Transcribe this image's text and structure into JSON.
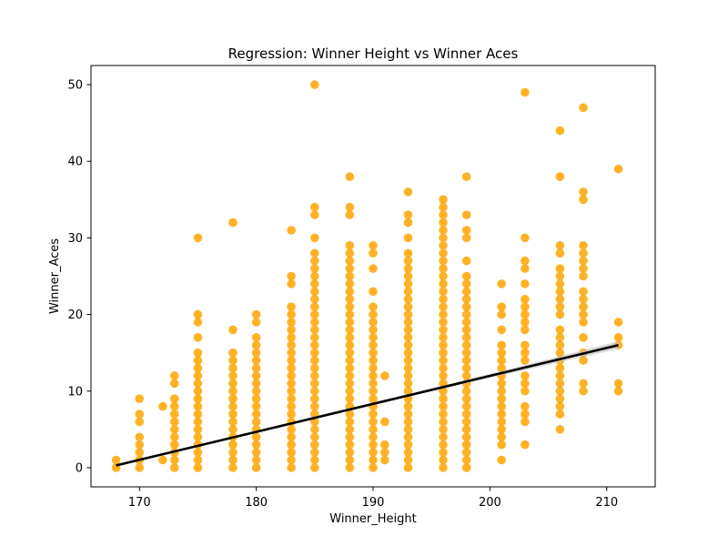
{
  "chart_data": {
    "type": "scatter",
    "title": "Regression: Winner Height vs Winner Aces",
    "xlabel": "Winner_Height",
    "ylabel": "Winner_Aces",
    "xlim": [
      165.85,
      214.15
    ],
    "ylim": [
      -2.5,
      52.5
    ],
    "xticks": [
      170,
      180,
      190,
      200,
      210
    ],
    "yticks": [
      0,
      10,
      20,
      30,
      40,
      50
    ],
    "grid": false,
    "point_color": "#ffa500",
    "line_color": "#000000",
    "band_color": "#bfbfbf",
    "columns": [
      {
        "x": 168,
        "y": [
          0,
          1
        ]
      },
      {
        "x": 170,
        "y": [
          0,
          1,
          2,
          3,
          4,
          6,
          7,
          9
        ]
      },
      {
        "x": 172,
        "y": [
          1,
          8
        ]
      },
      {
        "x": 173,
        "y": [
          0,
          1,
          2,
          3,
          4,
          5,
          6,
          7,
          8,
          9,
          11,
          12
        ]
      },
      {
        "x": 175,
        "y": [
          0,
          1,
          2,
          3,
          4,
          5,
          6,
          7,
          8,
          9,
          10,
          11,
          12,
          13,
          14,
          15,
          17,
          19,
          20,
          30
        ]
      },
      {
        "x": 178,
        "y": [
          0,
          1,
          2,
          3,
          4,
          5,
          6,
          7,
          8,
          9,
          10,
          11,
          12,
          13,
          14,
          15,
          18,
          32
        ]
      },
      {
        "x": 180,
        "y": [
          0,
          1,
          2,
          3,
          4,
          5,
          6,
          7,
          8,
          9,
          10,
          11,
          12,
          13,
          14,
          15,
          16,
          17,
          19,
          20
        ]
      },
      {
        "x": 183,
        "y": [
          0,
          1,
          2,
          3,
          4,
          5,
          6,
          7,
          8,
          9,
          10,
          11,
          12,
          13,
          14,
          15,
          16,
          17,
          18,
          19,
          20,
          21,
          24,
          25,
          31
        ]
      },
      {
        "x": 185,
        "y": [
          0,
          1,
          2,
          3,
          4,
          5,
          6,
          7,
          8,
          9,
          10,
          11,
          12,
          13,
          14,
          15,
          16,
          17,
          18,
          19,
          20,
          21,
          22,
          23,
          24,
          25,
          26,
          27,
          28,
          30,
          33,
          34,
          50
        ]
      },
      {
        "x": 188,
        "y": [
          0,
          1,
          2,
          3,
          4,
          5,
          6,
          7,
          8,
          9,
          10,
          11,
          12,
          13,
          14,
          15,
          16,
          17,
          18,
          19,
          20,
          21,
          22,
          23,
          24,
          25,
          26,
          27,
          28,
          29,
          33,
          34,
          38
        ]
      },
      {
        "x": 190,
        "y": [
          0,
          1,
          2,
          3,
          4,
          5,
          6,
          7,
          8,
          9,
          10,
          11,
          12,
          13,
          14,
          15,
          16,
          17,
          18,
          19,
          20,
          21,
          23,
          26,
          28,
          29
        ]
      },
      {
        "x": 191,
        "y": [
          1,
          2,
          3,
          6,
          12
        ]
      },
      {
        "x": 193,
        "y": [
          0,
          1,
          2,
          3,
          4,
          5,
          6,
          7,
          8,
          9,
          10,
          11,
          12,
          13,
          14,
          15,
          16,
          17,
          18,
          19,
          20,
          21,
          22,
          23,
          24,
          25,
          26,
          27,
          28,
          30,
          32,
          33,
          36
        ]
      },
      {
        "x": 196,
        "y": [
          0,
          1,
          2,
          3,
          4,
          5,
          6,
          7,
          8,
          9,
          10,
          11,
          12,
          13,
          14,
          15,
          16,
          17,
          18,
          19,
          20,
          21,
          22,
          23,
          24,
          25,
          26,
          27,
          28,
          29,
          30,
          31,
          32,
          33,
          34,
          35
        ]
      },
      {
        "x": 198,
        "y": [
          0,
          1,
          2,
          3,
          4,
          5,
          6,
          7,
          8,
          9,
          10,
          11,
          12,
          13,
          14,
          15,
          16,
          17,
          18,
          19,
          20,
          21,
          22,
          23,
          24,
          25,
          27,
          30,
          31,
          33,
          38
        ]
      },
      {
        "x": 201,
        "y": [
          1,
          3,
          4,
          5,
          6,
          7,
          8,
          9,
          10,
          11,
          12,
          13,
          14,
          15,
          16,
          18,
          20,
          21,
          24
        ]
      },
      {
        "x": 203,
        "y": [
          3,
          6,
          7,
          8,
          10,
          11,
          12,
          14,
          15,
          16,
          18,
          19,
          20,
          21,
          22,
          24,
          26,
          27,
          30,
          49
        ]
      },
      {
        "x": 206,
        "y": [
          5,
          7,
          8,
          9,
          10,
          11,
          12,
          13,
          14,
          15,
          16,
          17,
          18,
          20,
          21,
          22,
          23,
          24,
          25,
          26,
          28,
          29,
          38,
          44
        ]
      },
      {
        "x": 208,
        "y": [
          10,
          11,
          14,
          15,
          17,
          19,
          20,
          21,
          22,
          23,
          25,
          26,
          27,
          28,
          29,
          35,
          36,
          47
        ]
      },
      {
        "x": 211,
        "y": [
          10,
          11,
          16,
          17,
          19,
          39
        ]
      }
    ],
    "regression": {
      "x": [
        168,
        211
      ],
      "y": [
        0.3,
        16.0
      ],
      "ci_upper_end": 16.5,
      "ci_lower_end": 15.5
    }
  }
}
